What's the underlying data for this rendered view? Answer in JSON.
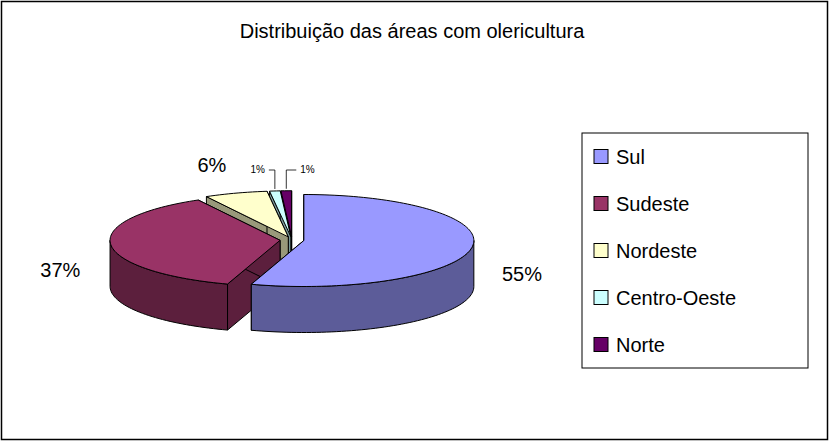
{
  "chart_data": {
    "type": "pie",
    "title": "Distribuição das áreas com olericultura",
    "categories": [
      "Sul",
      "Sudeste",
      "Nordeste",
      "Centro-Oeste",
      "Norte"
    ],
    "values": [
      55,
      37,
      6,
      1,
      1
    ],
    "value_labels": [
      "55%",
      "37%",
      "6%",
      "1%",
      "1%"
    ],
    "colors": [
      "#9999ff",
      "#993366",
      "#ffffcc",
      "#ccffff",
      "#660066"
    ],
    "data_labels": true,
    "legend": "right"
  }
}
